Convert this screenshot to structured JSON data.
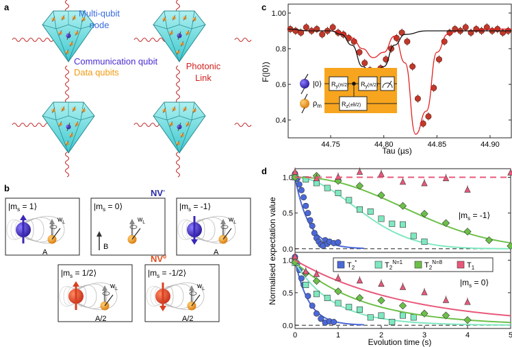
{
  "panels": {
    "a": {
      "label": "a",
      "node_label_line1": "Multi-qubit",
      "node_label_line2": "node",
      "communication_qubit": "Communication qubit",
      "data_qubits": "Data qubits",
      "link_line1": "Photonic",
      "link_line2": "Link"
    },
    "b": {
      "label": "b",
      "nv_minus_title": "NV",
      "nv_minus_charge": "-",
      "nv_zero_title": "NV",
      "nv_zero_charge": "0",
      "boxes": [
        {
          "state": "|m",
          "sub": "s",
          "value": " = 1⟩",
          "wl": "w",
          "wl_sub": "L",
          "coupling": "A"
        },
        {
          "state": "|m",
          "sub": "s",
          "value": " = 0⟩",
          "wl": "w",
          "wl_sub": "L",
          "field": "B"
        },
        {
          "state": "|m",
          "sub": "s",
          "value": " = -1⟩",
          "wl": "w",
          "wl_sub": "L",
          "coupling": "A"
        },
        {
          "state": "|m",
          "sub": "s",
          "value": " = 1/2⟩",
          "wl": "w",
          "wl_sub": "L",
          "coupling": "A/2"
        },
        {
          "state": "|m",
          "sub": "s",
          "value": " = -1/2⟩",
          "wl": "w",
          "wl_sub": "L",
          "coupling": "A/2"
        }
      ]
    },
    "c": {
      "label": "c",
      "ylabel": "F(|0⟩)",
      "xlabel": "Tau (µs)",
      "inset": {
        "ket0": "|0⟩",
        "rho": "ρ",
        "rho_sub": "m",
        "gate1": "R",
        "gate1_sub": "y",
        "gate1_arg": "(π/2)",
        "gate2": "R",
        "gate2_sub": "y",
        "gate2_arg": "(π/2)",
        "gate3": "R",
        "gate3_sub": "z",
        "gate3_arg": "(±θ/2)"
      }
    },
    "d": {
      "label": "d",
      "ylabel": "Normalised expectation value",
      "xlabel": "Evolution time (s)",
      "state_top": "|m",
      "state_top_sub": "s",
      "state_top_value": " = -1⟩",
      "state_bottom": "|m",
      "state_bottom_sub": "s",
      "state_bottom_value": " = 0⟩",
      "legend": [
        {
          "name": "T",
          "sub": "2",
          "sup": "*",
          "color": "#4a68d8"
        },
        {
          "name": "T",
          "sub": "2",
          "sup": "N=1",
          "color": "#7fe8c0"
        },
        {
          "name": "T",
          "sub": "2",
          "sup": "N=8",
          "color": "#6cc048"
        },
        {
          "name": "T",
          "sub": "1",
          "sup": "",
          "color": "#e8587a"
        }
      ]
    }
  },
  "chart_data": [
    {
      "type": "line",
      "panel": "c",
      "title": "",
      "xlabel": "Tau (µs)",
      "ylabel": "F(|0⟩)",
      "xlim": [
        44.71,
        44.92
      ],
      "ylim": [
        0.3,
        1.05
      ],
      "xticks": [
        44.75,
        44.8,
        44.85,
        44.9
      ],
      "xtick_labels": [
        "44.75",
        "44.80",
        "44.85",
        "44.90"
      ],
      "yticks": [
        0.4,
        0.6,
        0.8,
        1.0
      ],
      "ytick_labels": [
        "0.4",
        "0.6",
        "0.8",
        "1.00"
      ],
      "series": [
        {
          "name": "data",
          "color": "#c0392b",
          "x": [
            44.712,
            44.717,
            44.722,
            44.727,
            44.732,
            44.737,
            44.742,
            44.747,
            44.752,
            44.757,
            44.762,
            44.767,
            44.772,
            44.777,
            44.782,
            44.787,
            44.792,
            44.797,
            44.802,
            44.807,
            44.812,
            44.817,
            44.822,
            44.827,
            44.832,
            44.837,
            44.842,
            44.847,
            44.852,
            44.857,
            44.862,
            44.867,
            44.872,
            44.877,
            44.882,
            44.887,
            44.892,
            44.897,
            44.902,
            44.907,
            44.912,
            44.917
          ],
          "y": [
            0.91,
            0.9,
            0.89,
            0.92,
            0.9,
            0.91,
            0.88,
            0.9,
            0.92,
            0.89,
            0.88,
            0.86,
            0.84,
            0.78,
            0.72,
            0.68,
            0.66,
            0.69,
            0.74,
            0.8,
            0.86,
            0.89,
            0.84,
            0.7,
            0.52,
            0.38,
            0.42,
            0.58,
            0.74,
            0.84,
            0.89,
            0.91,
            0.9,
            0.92,
            0.89,
            0.91,
            0.9,
            0.92,
            0.9,
            0.91,
            0.89,
            0.9
          ]
        },
        {
          "name": "fit theta+",
          "color": "#e02020",
          "x": [
            44.71,
            44.73,
            44.75,
            44.76,
            44.77,
            44.78,
            44.79,
            44.8,
            44.81,
            44.82,
            44.83,
            44.84,
            44.85,
            44.86,
            44.87,
            44.88,
            44.9,
            44.92
          ],
          "y": [
            0.91,
            0.9,
            0.9,
            0.89,
            0.86,
            0.8,
            0.75,
            0.78,
            0.87,
            0.72,
            0.32,
            0.45,
            0.78,
            0.88,
            0.9,
            0.9,
            0.91,
            0.91
          ]
        },
        {
          "name": "fit theta-",
          "color": "#111111",
          "x": [
            44.71,
            44.73,
            44.75,
            44.76,
            44.77,
            44.78,
            44.79,
            44.8,
            44.81,
            44.82,
            44.84,
            44.86,
            44.88,
            44.9,
            44.92
          ],
          "y": [
            0.91,
            0.9,
            0.9,
            0.88,
            0.82,
            0.7,
            0.64,
            0.7,
            0.82,
            0.88,
            0.9,
            0.9,
            0.9,
            0.9,
            0.9
          ]
        }
      ]
    },
    {
      "type": "scatter",
      "panel": "d-top",
      "title": "",
      "xlabel": "",
      "ylabel": "Normalised expectation value",
      "xlim": [
        0,
        5
      ],
      "ylim": [
        -0.05,
        1.12
      ],
      "yticks": [
        0.0,
        0.5,
        1.0
      ],
      "ytick_labels": [
        "0.0",
        "0.5",
        "1.0"
      ],
      "series": [
        {
          "name": "T2*",
          "color": "#4a68d8",
          "marker": "circle",
          "x": [
            0,
            0.05,
            0.1,
            0.15,
            0.2,
            0.25,
            0.3,
            0.35,
            0.4,
            0.45,
            0.5,
            0.55,
            0.6,
            0.65,
            0.7,
            0.75,
            0.8,
            0.9,
            1.0
          ],
          "y": [
            1.05,
            0.98,
            0.9,
            0.82,
            0.72,
            0.6,
            0.5,
            0.4,
            0.32,
            0.22,
            0.15,
            0.1,
            0.06,
            0.04,
            0.12,
            0.07,
            0.1,
            0.08,
            0.09
          ]
        },
        {
          "name": "T2 N=1",
          "color": "#7fe8c0",
          "marker": "square",
          "x": [
            0,
            0.25,
            0.5,
            0.75,
            1.0,
            1.25,
            1.5,
            1.75,
            2.0,
            2.25,
            2.5,
            2.75,
            3.0
          ],
          "y": [
            1.0,
            0.97,
            0.92,
            0.85,
            0.78,
            0.68,
            0.55,
            0.52,
            0.42,
            0.35,
            0.34,
            0.18,
            0.1
          ]
        },
        {
          "name": "T2 N=8",
          "color": "#6cc048",
          "marker": "diamond",
          "x": [
            0,
            0.5,
            1.0,
            1.5,
            2.0,
            2.5,
            3.0,
            3.5,
            4.0,
            4.5,
            5.0
          ],
          "y": [
            1.0,
            1.02,
            0.95,
            0.88,
            0.75,
            0.6,
            0.49,
            0.36,
            0.24,
            0.12,
            0.04
          ]
        },
        {
          "name": "T1",
          "color": "#e8587a",
          "marker": "triangle",
          "x": [
            0,
            0.5,
            1.0,
            1.5,
            2.0,
            2.5,
            3.0,
            3.5,
            4.0,
            5.0
          ],
          "y": [
            1.07,
            0.98,
            1.0,
            1.07,
            1.04,
            0.93,
            0.91,
            0.98,
            0.82,
            1.06
          ]
        },
        {
          "name": "T1 fit",
          "color": "#e8587a",
          "style": "dashed",
          "x": [
            0,
            5
          ],
          "y": [
            1.0,
            1.0
          ]
        }
      ]
    },
    {
      "type": "scatter",
      "panel": "d-bottom",
      "title": "",
      "xlabel": "Evolution time (s)",
      "ylabel": "Normalised expectation value",
      "xlim": [
        0,
        5
      ],
      "ylim": [
        -0.05,
        1.12
      ],
      "xticks": [
        0,
        1,
        2,
        3,
        4,
        5
      ],
      "xtick_labels": [
        "0",
        "1",
        "2",
        "3",
        "4",
        "5"
      ],
      "yticks": [
        0.0,
        0.5,
        1.0
      ],
      "ytick_labels": [
        "0.0",
        "0.5",
        "1.0"
      ],
      "series": [
        {
          "name": "T2*",
          "color": "#4a68d8",
          "marker": "circle",
          "x": [
            0,
            0.05,
            0.1,
            0.15,
            0.2,
            0.3,
            0.4,
            0.5,
            0.6,
            0.7,
            0.8,
            0.9
          ],
          "y": [
            1.05,
            0.95,
            0.85,
            0.72,
            0.62,
            0.45,
            0.3,
            0.18,
            0.1,
            0.04,
            0.06,
            0.05
          ]
        },
        {
          "name": "T2 N=1",
          "color": "#7fe8c0",
          "marker": "square",
          "x": [
            0,
            0.25,
            0.5,
            0.75,
            1.0,
            1.25,
            1.5,
            1.75,
            2.0,
            2.25,
            2.5,
            2.75
          ],
          "y": [
            0.96,
            0.62,
            0.48,
            0.42,
            0.34,
            0.28,
            0.24,
            0.12,
            0.15,
            0.05,
            0.15,
            0.12
          ]
        },
        {
          "name": "T2 N=8",
          "color": "#6cc048",
          "marker": "diamond",
          "x": [
            0,
            0.25,
            0.5,
            1.0,
            1.5,
            2.0,
            2.5,
            3.0,
            3.5,
            4.0
          ],
          "y": [
            0.97,
            0.8,
            0.68,
            0.52,
            0.42,
            0.38,
            0.3,
            0.18,
            0.15,
            0.08
          ]
        },
        {
          "name": "T1",
          "color": "#e8587a",
          "marker": "triangle",
          "x": [
            0,
            0.25,
            0.5,
            1.0,
            1.5,
            2.0,
            2.5,
            3.0,
            3.5,
            4.0
          ],
          "y": [
            1.05,
            0.82,
            0.78,
            0.72,
            0.68,
            0.63,
            0.58,
            0.5,
            0.38,
            0.35
          ]
        }
      ]
    }
  ]
}
